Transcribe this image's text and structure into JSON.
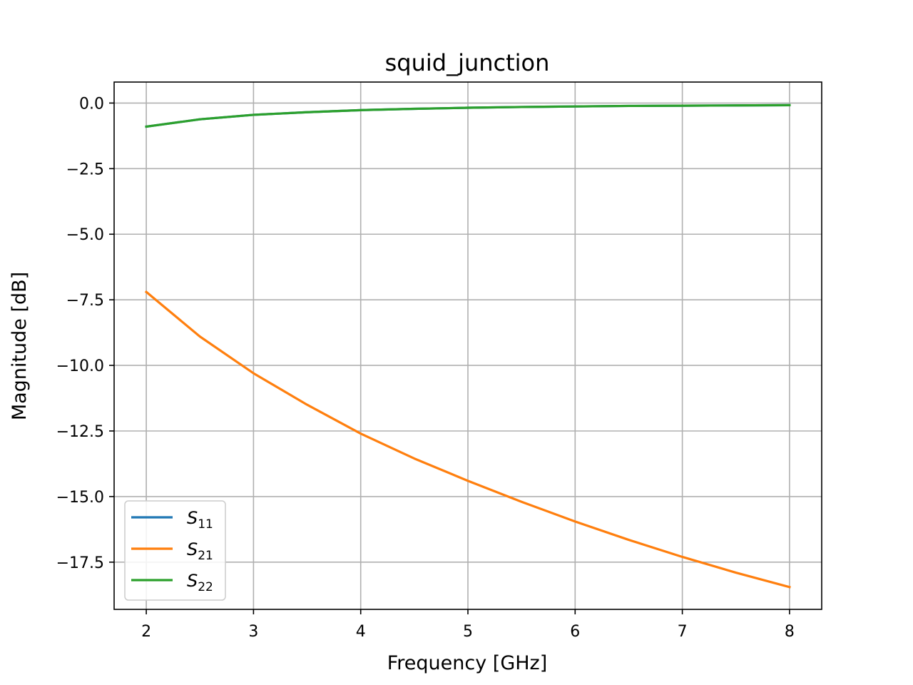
{
  "chart_data": {
    "type": "line",
    "title": "squid_junction",
    "xlabel": "Frequency [GHz]",
    "ylabel": "Magnitude [dB]",
    "xlim": [
      1.7,
      8.3
    ],
    "ylim": [
      -19.3,
      0.8
    ],
    "xticks": [
      2,
      3,
      4,
      5,
      6,
      7,
      8
    ],
    "xtick_labels": [
      "2",
      "3",
      "4",
      "5",
      "6",
      "7",
      "8"
    ],
    "yticks": [
      0.0,
      -2.5,
      -5.0,
      -7.5,
      -10.0,
      -12.5,
      -15.0,
      -17.5
    ],
    "ytick_labels": [
      "0.0",
      "−2.5",
      "−5.0",
      "−7.5",
      "−10.0",
      "−12.5",
      "−15.0",
      "−17.5"
    ],
    "grid": true,
    "legend_position": "lower-left",
    "x": [
      2.0,
      2.5,
      3.0,
      3.5,
      4.0,
      4.5,
      5.0,
      5.5,
      6.0,
      6.5,
      7.0,
      7.5,
      8.0
    ],
    "series": [
      {
        "name": "S11",
        "legend_base": "S",
        "legend_sub": "11",
        "color": "#1f77b4",
        "values": [
          -0.9,
          -0.62,
          -0.45,
          -0.35,
          -0.27,
          -0.22,
          -0.18,
          -0.15,
          -0.13,
          -0.11,
          -0.1,
          -0.09,
          -0.08
        ]
      },
      {
        "name": "S21",
        "legend_base": "S",
        "legend_sub": "21",
        "color": "#ff7f0e",
        "values": [
          -7.2,
          -8.9,
          -10.3,
          -11.5,
          -12.6,
          -13.55,
          -14.4,
          -15.2,
          -15.95,
          -16.65,
          -17.3,
          -17.9,
          -18.45
        ]
      },
      {
        "name": "S22",
        "legend_base": "S",
        "legend_sub": "22",
        "color": "#2ca02c",
        "values": [
          -0.9,
          -0.62,
          -0.45,
          -0.35,
          -0.27,
          -0.22,
          -0.18,
          -0.15,
          -0.13,
          -0.11,
          -0.1,
          -0.09,
          -0.08
        ]
      }
    ]
  }
}
